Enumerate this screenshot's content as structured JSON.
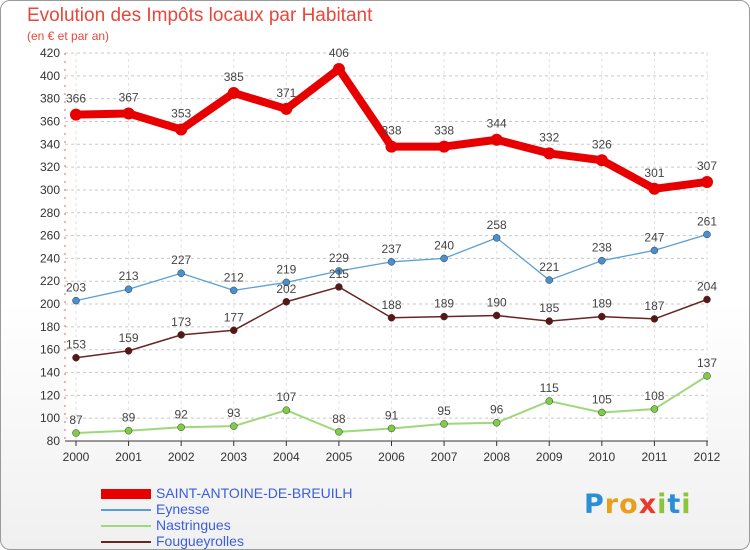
{
  "header": {
    "title": "Evolution des Impôts locaux par Habitant",
    "subtitle": "(en € et par an)"
  },
  "chart_data": {
    "type": "line",
    "x": [
      "2000",
      "2001",
      "2002",
      "2003",
      "2004",
      "2005",
      "2006",
      "2007",
      "2008",
      "2009",
      "2010",
      "2011",
      "2012"
    ],
    "ylim": [
      80,
      420
    ],
    "yticks": [
      80,
      100,
      120,
      140,
      160,
      180,
      200,
      220,
      240,
      260,
      280,
      300,
      320,
      340,
      360,
      380,
      400,
      420
    ],
    "grid": "horizontal-dashed",
    "legend_position": "bottom-left",
    "series": [
      {
        "name": "SAINT-ANTOINE-DE-BREUILH",
        "color": "#e80000",
        "width": 8,
        "marker_color": "#e80000",
        "values": [
          366,
          367,
          353,
          385,
          371,
          406,
          338,
          338,
          344,
          332,
          326,
          301,
          307
        ]
      },
      {
        "name": "Eynesse",
        "color": "#5a9fd4",
        "width": 1.3,
        "marker_color": "#4a90d0",
        "values": [
          203,
          213,
          227,
          212,
          219,
          229,
          237,
          240,
          258,
          221,
          238,
          247,
          261
        ]
      },
      {
        "name": "Nastringues",
        "color": "#9fd87a",
        "width": 2,
        "marker_color": "#7fcc45",
        "values": [
          87,
          89,
          92,
          93,
          107,
          88,
          91,
          95,
          96,
          115,
          105,
          108,
          137
        ]
      },
      {
        "name": "Fougueyrolles",
        "color": "#6b2424",
        "width": 1.5,
        "marker_color": "#5a1616",
        "values": [
          153,
          159,
          173,
          177,
          202,
          215,
          188,
          189,
          190,
          185,
          189,
          187,
          204
        ]
      }
    ]
  },
  "logo": {
    "letters": [
      "P",
      "r",
      "o",
      "x",
      "i",
      "t",
      "i"
    ],
    "colors": [
      "#2c8fd6",
      "#e8a01c",
      "#e8a01c",
      "#e83a2c",
      "#8cc43a",
      "#2c8fd6",
      "#8cc43a"
    ]
  }
}
